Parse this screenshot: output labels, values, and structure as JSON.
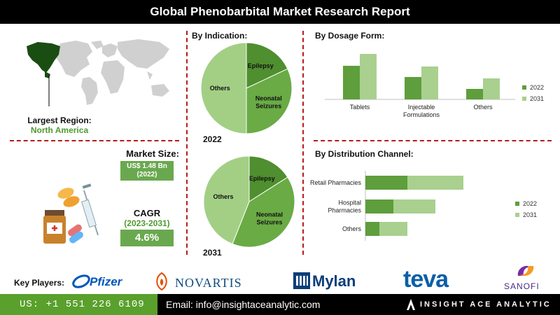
{
  "title": "Global Phenobarbital Market Research Report",
  "region": {
    "label": "Largest Region:",
    "value": "North America"
  },
  "market_size": {
    "label": "Market Size:",
    "value": "US$ 1.48 Bn",
    "year": "(2022)"
  },
  "cagr": {
    "label": "CAGR",
    "period": "(2023-2031)",
    "value": "4.6%"
  },
  "indication": {
    "heading": "By Indication:",
    "year_2022": "2022",
    "year_2031": "2031"
  },
  "dosage": {
    "heading": "By Dosage Form:"
  },
  "distribution": {
    "heading": "By Distribution Channel:"
  },
  "key_players": {
    "label": "Key Players:",
    "pfizer": "Pfizer",
    "novartis": "NOVARTIS",
    "mylan": "Mylan",
    "teva": "teva",
    "sanofi": "SANOFI"
  },
  "footer": {
    "phone": "US: +1 551 226 6109",
    "email": "Email: info@insightaceanalytic.com",
    "brand": "INSIGHT ACE ANALYTIC"
  },
  "colors": {
    "dark_green": "#5e9e3c",
    "light_green": "#a9d08e",
    "accent_red": "#b71c1c"
  },
  "chart_data": [
    {
      "type": "pie",
      "year": "2022",
      "categories": [
        "Epilepsy",
        "Neonatal Seizures",
        "Others"
      ],
      "values": [
        18,
        32,
        50
      ]
    },
    {
      "type": "pie",
      "year": "2031",
      "categories": [
        "Epilepsy",
        "Neonatal Seizures",
        "Others"
      ],
      "values": [
        16,
        40,
        44
      ]
    },
    {
      "type": "bar",
      "categories": [
        "Tablets",
        "Injectable Formulations",
        "Others"
      ],
      "series": [
        {
          "name": "2022",
          "values": [
            48,
            32,
            15
          ]
        },
        {
          "name": "2031",
          "values": [
            65,
            47,
            30
          ]
        }
      ],
      "legend": "right"
    },
    {
      "type": "bar",
      "orientation": "horizontal",
      "stacked": true,
      "categories": [
        "Retail Pharmacies",
        "Hospital Pharmacies",
        "Others"
      ],
      "series": [
        {
          "name": "2022",
          "values": [
            60,
            40,
            20
          ]
        },
        {
          "name": "2031",
          "values": [
            80,
            60,
            40
          ]
        }
      ],
      "legend": "right"
    }
  ]
}
